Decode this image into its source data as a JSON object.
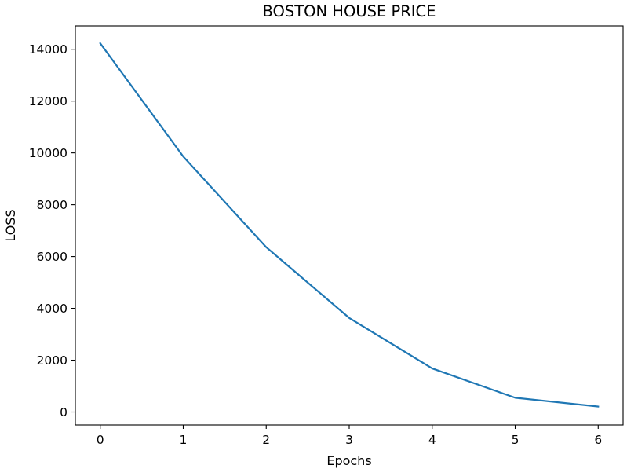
{
  "chart_data": {
    "type": "line",
    "title": "BOSTON HOUSE PRICE",
    "xlabel": "Epochs",
    "ylabel": "LOSS",
    "xlim": [
      -0.3,
      6.3
    ],
    "ylim": [
      -500,
      14900
    ],
    "xticks": [
      0,
      1,
      2,
      3,
      4,
      5,
      6
    ],
    "yticks": [
      0,
      2000,
      4000,
      6000,
      8000,
      10000,
      12000,
      14000
    ],
    "grid": false,
    "series": [
      {
        "x": [
          0,
          1,
          2,
          3,
          4,
          5,
          6
        ],
        "y": [
          14230,
          9860,
          6360,
          3630,
          1680,
          550,
          210
        ],
        "color": "#1f77b4"
      }
    ]
  }
}
